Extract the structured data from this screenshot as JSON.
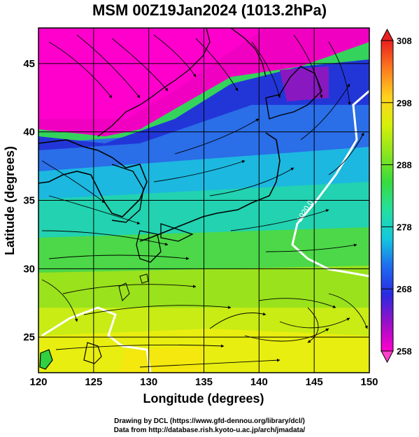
{
  "title": "MSM 00Z19Jan2024 (1013.2hPa)",
  "x_axis": {
    "label": "Longitude (degrees)",
    "ticks": [
      {
        "value": 120,
        "label": "120"
      },
      {
        "value": 125,
        "label": "125"
      },
      {
        "value": 130,
        "label": "130"
      },
      {
        "value": 135,
        "label": "135"
      },
      {
        "value": 140,
        "label": "140"
      },
      {
        "value": 145,
        "label": "145"
      },
      {
        "value": 150,
        "label": "150"
      }
    ],
    "range": [
      120,
      150
    ]
  },
  "y_axis": {
    "label": "Latitude  (degrees)",
    "ticks": [
      {
        "value": 25,
        "label": "25"
      },
      {
        "value": 30,
        "label": "30"
      },
      {
        "value": 35,
        "label": "35"
      },
      {
        "value": 40,
        "label": "40"
      },
      {
        "value": 45,
        "label": "45"
      }
    ],
    "range": [
      22.4,
      47.6
    ]
  },
  "colorbar": {
    "ticks": [
      {
        "value": 258,
        "label": "258"
      },
      {
        "value": 268,
        "label": "268"
      },
      {
        "value": 278,
        "label": "278"
      },
      {
        "value": 288,
        "label": "288"
      },
      {
        "value": 298,
        "label": "298"
      },
      {
        "value": 308,
        "label": "308"
      }
    ],
    "range": [
      258,
      308
    ],
    "colors": [
      "#ff00cc",
      "#9a10c8",
      "#2a2ae0",
      "#1e6cf0",
      "#14c8dc",
      "#24e0a0",
      "#36dc3c",
      "#8ce61e",
      "#d6f00a",
      "#ffd21e",
      "#ff7a1e",
      "#e8201e"
    ]
  },
  "contour_label": "1020.0",
  "footer": {
    "line1": "Drawing by DCL (https://www.gfd-dennou.org/library/dcl/)",
    "line2": "Data from http://database.rish.kyoto-u.ac.jp/arch/jmadata/"
  }
}
